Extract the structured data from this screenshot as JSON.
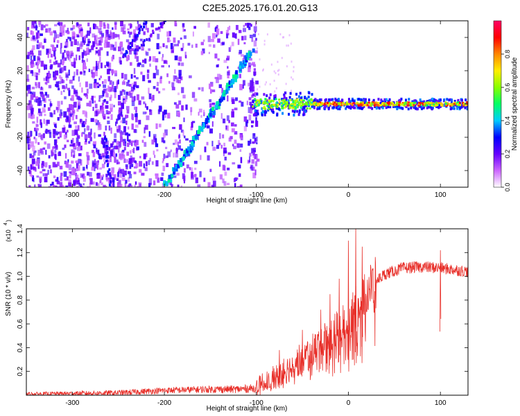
{
  "title": "C2E5.2025.176.01.20.G13",
  "chart_data": [
    {
      "type": "heatmap",
      "xlabel": "Height of straight line (km)",
      "ylabel": "Frequency (Hz)",
      "xlim": [
        -350,
        130
      ],
      "ylim": [
        -50,
        50
      ],
      "xticks": [
        -300,
        -200,
        -100,
        0,
        100
      ],
      "yticks": [
        -40,
        -20,
        0,
        20,
        40
      ],
      "colorbar": {
        "label": "Normalized spectral amplitude",
        "range": [
          0,
          1
        ],
        "ticks": [
          "0.0",
          "0.2",
          "0.4",
          "0.6",
          "0.8"
        ],
        "colors": [
          "#ffffff",
          "#cc66ff",
          "#6600ff",
          "#0000ff",
          "#00ccff",
          "#00ff66",
          "#88ff00",
          "#ffee00",
          "#ff8800",
          "#ff0000",
          "#ff0066"
        ]
      },
      "features": {
        "ramp_track": {
          "x": [
            -200,
            -105
          ],
          "freq": [
            -50,
            32
          ],
          "amplitude": 0.35
        },
        "carrier_line": {
          "x": [
            -105,
            130
          ],
          "freq": 0,
          "amplitude": 0.9
        },
        "noise_region_x": [
          -350,
          -100
        ]
      }
    },
    {
      "type": "line",
      "xlabel": "Height of straight line (km)",
      "ylabel": "SNR (10 * v/v)",
      "scale_label": "(x10",
      "scale_exp": "4",
      "xlim": [
        -350,
        130
      ],
      "ylim": [
        0,
        1.4
      ],
      "xticks": [
        -300,
        -200,
        -100,
        0,
        100
      ],
      "yticks": [
        "0.2",
        "0.4",
        "0.6",
        "0.8",
        "1.0",
        "1.2",
        "1.4"
      ],
      "series": [
        {
          "color": "#e8302a",
          "envelope": [
            {
              "x": -350,
              "y": 0.01
            },
            {
              "x": -250,
              "y": 0.02
            },
            {
              "x": -200,
              "y": 0.04
            },
            {
              "x": -150,
              "y": 0.05
            },
            {
              "x": -120,
              "y": 0.05
            },
            {
              "x": -100,
              "y": 0.06
            },
            {
              "x": -80,
              "y": 0.15
            },
            {
              "x": -60,
              "y": 0.25
            },
            {
              "x": -40,
              "y": 0.38
            },
            {
              "x": -20,
              "y": 0.5
            },
            {
              "x": 0,
              "y": 0.62
            },
            {
              "x": 10,
              "y": 0.75
            },
            {
              "x": 20,
              "y": 0.88
            },
            {
              "x": 30,
              "y": 0.96
            },
            {
              "x": 40,
              "y": 1.02
            },
            {
              "x": 60,
              "y": 1.07
            },
            {
              "x": 80,
              "y": 1.08
            },
            {
              "x": 100,
              "y": 1.07
            },
            {
              "x": 130,
              "y": 1.04
            }
          ],
          "peaks": [
            {
              "x": -75,
              "y": 0.38
            },
            {
              "x": -50,
              "y": 0.55
            },
            {
              "x": -30,
              "y": 0.72
            },
            {
              "x": -20,
              "y": 0.85
            },
            {
              "x": -10,
              "y": 0.98
            },
            {
              "x": 0,
              "y": 1.3
            },
            {
              "x": 8,
              "y": 1.4
            },
            {
              "x": 15,
              "y": 1.25
            },
            {
              "x": 100,
              "y": 1.22
            }
          ]
        }
      ]
    }
  ]
}
